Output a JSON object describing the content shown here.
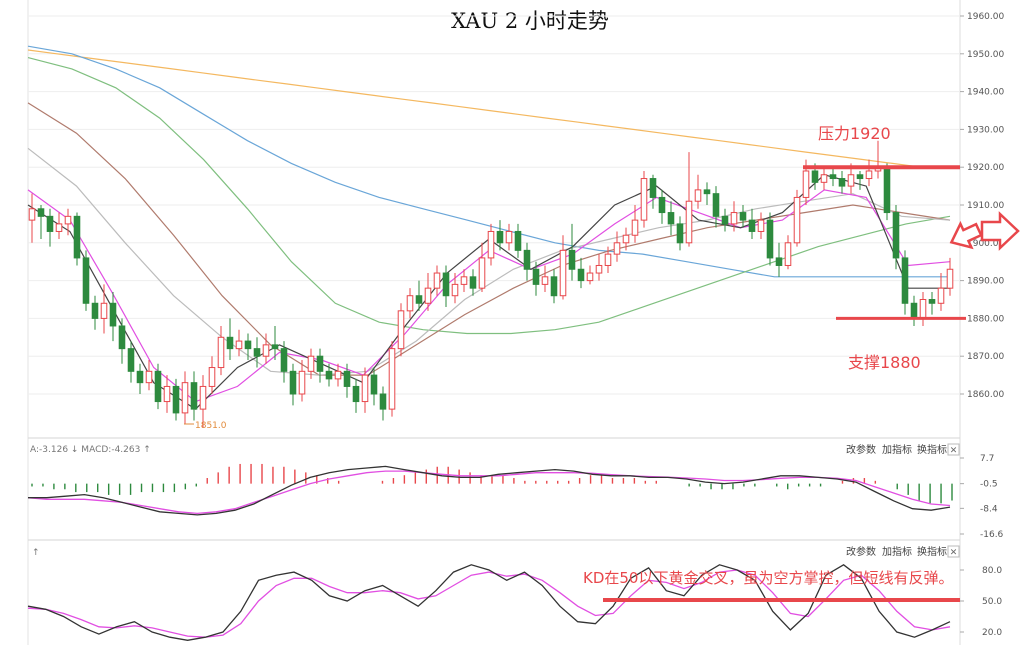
{
  "chart_data": {
    "type": "candlestick",
    "title": "XAU 2 小时走势",
    "price_axis": {
      "ticks": [
        1960,
        1950,
        1940,
        1930,
        1920,
        1910,
        1900,
        1890,
        1880,
        1870,
        1860
      ],
      "tick_labels": [
        "1960.00",
        "1950.00",
        "1940.00",
        "1930.00",
        "1920.00",
        "1910.00",
        "1900.00",
        "1890.00",
        "1880.00",
        "1870.00",
        "1860.00"
      ]
    },
    "candles": [
      [
        1906,
        1909,
        1913,
        1900
      ],
      [
        1909,
        1907,
        1910,
        1901
      ],
      [
        1907,
        1903,
        1909,
        1899
      ],
      [
        1903,
        1905,
        1908,
        1901
      ],
      [
        1905,
        1907,
        1909,
        1902
      ],
      [
        1907,
        1896,
        1908,
        1894
      ],
      [
        1896,
        1884,
        1898,
        1882
      ],
      [
        1884,
        1880,
        1886,
        1877
      ],
      [
        1880,
        1884,
        1889,
        1876
      ],
      [
        1884,
        1878,
        1887,
        1874
      ],
      [
        1878,
        1872,
        1880,
        1868
      ],
      [
        1872,
        1866,
        1874,
        1863
      ],
      [
        1866,
        1863,
        1868,
        1860
      ],
      [
        1863,
        1866,
        1869,
        1861
      ],
      [
        1866,
        1858,
        1868,
        1856
      ],
      [
        1858,
        1862,
        1865,
        1855
      ],
      [
        1862,
        1855,
        1864,
        1853
      ],
      [
        1855,
        1863,
        1866,
        1852
      ],
      [
        1863,
        1856,
        1866,
        1853
      ],
      [
        1856,
        1862,
        1865,
        1851
      ],
      [
        1862,
        1867,
        1870,
        1860
      ],
      [
        1867,
        1875,
        1878,
        1865
      ],
      [
        1875,
        1872,
        1880,
        1869
      ],
      [
        1872,
        1874,
        1877,
        1870
      ],
      [
        1874,
        1872,
        1876,
        1869
      ],
      [
        1872,
        1870,
        1875,
        1867
      ],
      [
        1870,
        1873,
        1876,
        1868
      ],
      [
        1873,
        1872,
        1878,
        1869
      ],
      [
        1872,
        1866,
        1874,
        1863
      ],
      [
        1866,
        1860,
        1868,
        1857
      ],
      [
        1860,
        1866,
        1869,
        1858
      ],
      [
        1866,
        1870,
        1872,
        1864
      ],
      [
        1870,
        1866,
        1872,
        1863
      ],
      [
        1866,
        1864,
        1868,
        1862
      ],
      [
        1864,
        1866,
        1868,
        1862
      ],
      [
        1866,
        1862,
        1868,
        1859
      ],
      [
        1862,
        1858,
        1864,
        1855
      ],
      [
        1858,
        1865,
        1867,
        1855
      ],
      [
        1865,
        1860,
        1867,
        1857
      ],
      [
        1860,
        1856,
        1862,
        1853
      ],
      [
        1856,
        1872,
        1874,
        1854
      ],
      [
        1872,
        1882,
        1884,
        1870
      ],
      [
        1882,
        1886,
        1888,
        1880
      ],
      [
        1886,
        1884,
        1890,
        1882
      ],
      [
        1884,
        1888,
        1892,
        1882
      ],
      [
        1888,
        1892,
        1894,
        1886
      ],
      [
        1892,
        1886,
        1894,
        1883
      ],
      [
        1886,
        1889,
        1892,
        1884
      ],
      [
        1889,
        1891,
        1893,
        1887
      ],
      [
        1891,
        1888,
        1893,
        1886
      ],
      [
        1888,
        1896,
        1900,
        1887
      ],
      [
        1896,
        1903,
        1905,
        1894
      ],
      [
        1903,
        1900,
        1906,
        1898
      ],
      [
        1900,
        1903,
        1905,
        1898
      ],
      [
        1903,
        1898,
        1905,
        1896
      ],
      [
        1898,
        1893,
        1900,
        1890
      ],
      [
        1893,
        1889,
        1895,
        1886
      ],
      [
        1889,
        1891,
        1894,
        1887
      ],
      [
        1891,
        1886,
        1893,
        1884
      ],
      [
        1886,
        1898,
        1902,
        1885
      ],
      [
        1898,
        1893,
        1905,
        1890
      ],
      [
        1893,
        1890,
        1896,
        1888
      ],
      [
        1890,
        1892,
        1894,
        1889
      ],
      [
        1892,
        1894,
        1897,
        1890
      ],
      [
        1894,
        1897,
        1899,
        1892
      ],
      [
        1897,
        1900,
        1903,
        1895
      ],
      [
        1900,
        1902,
        1904,
        1898
      ],
      [
        1902,
        1906,
        1910,
        1900
      ],
      [
        1906,
        1917,
        1919,
        1904
      ],
      [
        1917,
        1912,
        1918,
        1909
      ],
      [
        1912,
        1908,
        1914,
        1905
      ],
      [
        1908,
        1905,
        1911,
        1902
      ],
      [
        1905,
        1900,
        1907,
        1898
      ],
      [
        1900,
        1911,
        1924,
        1899
      ],
      [
        1911,
        1914,
        1918,
        1909
      ],
      [
        1914,
        1913,
        1916,
        1910
      ],
      [
        1913,
        1907,
        1915,
        1904
      ],
      [
        1907,
        1905,
        1909,
        1903
      ],
      [
        1905,
        1908,
        1911,
        1903
      ],
      [
        1908,
        1906,
        1910,
        1904
      ],
      [
        1906,
        1903,
        1909,
        1901
      ],
      [
        1903,
        1906,
        1908,
        1901
      ],
      [
        1906,
        1896,
        1908,
        1894
      ],
      [
        1896,
        1894,
        1900,
        1891
      ],
      [
        1894,
        1900,
        1902,
        1893
      ],
      [
        1900,
        1912,
        1914,
        1899
      ],
      [
        1912,
        1919,
        1922,
        1910
      ],
      [
        1919,
        1916,
        1921,
        1914
      ],
      [
        1916,
        1918,
        1920,
        1914
      ],
      [
        1918,
        1917,
        1920,
        1915
      ],
      [
        1917,
        1915,
        1919,
        1913
      ],
      [
        1915,
        1918,
        1921,
        1913
      ],
      [
        1918,
        1917,
        1919,
        1914
      ],
      [
        1917,
        1919,
        1922,
        1915
      ],
      [
        1919,
        1920,
        1927,
        1917
      ],
      [
        1920,
        1908,
        1921,
        1906
      ],
      [
        1908,
        1896,
        1910,
        1893
      ],
      [
        1896,
        1884,
        1898,
        1881
      ],
      [
        1884,
        1880,
        1886,
        1878
      ],
      [
        1880,
        1885,
        1887,
        1878
      ],
      [
        1885,
        1884,
        1887,
        1881
      ],
      [
        1884,
        1888,
        1892,
        1882
      ],
      [
        1888,
        1893,
        1896,
        1886
      ]
    ],
    "moving_averages": [
      {
        "color": "#f4b860",
        "values": [
          1951,
          1950,
          1949,
          1948,
          1947,
          1946,
          1945,
          1944,
          1943,
          1942,
          1941,
          1940,
          1939,
          1938,
          1937,
          1936,
          1935,
          1934,
          1933,
          1932,
          1931,
          1930,
          1929,
          1928,
          1927,
          1926,
          1925,
          1924,
          1923,
          1922,
          1921,
          1920,
          1920
        ]
      },
      {
        "color": "#6aa6d8",
        "values": [
          1952,
          1950,
          1946,
          1941,
          1934,
          1927,
          1921,
          1916,
          1912,
          1909,
          1906,
          1903,
          1900,
          1898,
          1897,
          1895,
          1893,
          1891,
          1891,
          1891,
          1891,
          1891
        ]
      },
      {
        "color": "#7fbf7f",
        "values": [
          1949,
          1946,
          1941,
          1933,
          1922,
          1909,
          1895,
          1884,
          1879,
          1877,
          1876,
          1876,
          1877,
          1879,
          1883,
          1887,
          1891,
          1895,
          1899,
          1902,
          1905,
          1907
        ]
      },
      {
        "color": "#b07b6d",
        "values": [
          1937,
          1929,
          1917,
          1902,
          1886,
          1873,
          1865,
          1865,
          1873,
          1881,
          1888,
          1894,
          1898,
          1901,
          1904,
          1906,
          1908,
          1910,
          1908,
          1906
        ]
      },
      {
        "color": "#bcbcbc",
        "values": [
          1925,
          1915,
          1900,
          1886,
          1875,
          1866,
          1865,
          1866,
          1874,
          1885,
          1893,
          1898,
          1901,
          1904,
          1906,
          1909,
          1911,
          1913,
          1907,
          1906
        ]
      },
      {
        "color": "#e14fe2",
        "values": [
          1914,
          1906,
          1887,
          1867,
          1858,
          1862,
          1871,
          1869,
          1865,
          1876,
          1889,
          1898,
          1893,
          1897,
          1905,
          1912,
          1908,
          1904,
          1906,
          1914,
          1912,
          1894,
          1895
        ]
      },
      {
        "color": "#444444",
        "values": [
          1910,
          1903,
          1883,
          1863,
          1856,
          1867,
          1873,
          1868,
          1863,
          1878,
          1892,
          1901,
          1893,
          1899,
          1910,
          1915,
          1906,
          1904,
          1908,
          1918,
          1915,
          1888,
          1888
        ]
      }
    ],
    "price_levels": [
      {
        "value": 1920,
        "label": "压力1920"
      },
      {
        "value": 1880,
        "label": "支撑1880"
      }
    ],
    "low_marker": "1851.0",
    "macd": {
      "header": "A:-3.126 ↓ MACD:-4.263 ↑",
      "ticks": [
        7.7,
        -0.5,
        -8.4,
        -16.6
      ],
      "tick_labels": [
        "7.7",
        "-0.5",
        "-8.4",
        "-16.6"
      ],
      "histogram": [
        -1,
        -1,
        -2,
        -2,
        -3,
        -3,
        -3,
        -4,
        -4,
        -4,
        -3,
        -3,
        -3,
        -3,
        -2,
        -1,
        2,
        4,
        6,
        7,
        7,
        7,
        6,
        6,
        5,
        4,
        3,
        2,
        1,
        0,
        0,
        0,
        1,
        2,
        3,
        4,
        5,
        6,
        6,
        5,
        4,
        3,
        3,
        3,
        2,
        1,
        1,
        1,
        1,
        1,
        2,
        3,
        3,
        2,
        2,
        2,
        1,
        1,
        0,
        0,
        -1,
        -1,
        -2,
        -2,
        -2,
        -1,
        -1,
        0,
        -1,
        -2,
        -1,
        -1,
        -1,
        0,
        1,
        2,
        2,
        1,
        0,
        -2,
        -4,
        -6,
        -7,
        -7,
        -6
      ],
      "dif": [
        -5,
        -5,
        -4.5,
        -4,
        -5,
        -6.5,
        -8,
        -9.5,
        -10,
        -10.5,
        -10,
        -9,
        -7,
        -4,
        -1,
        1.5,
        3,
        4,
        4.5,
        5,
        4,
        3,
        2,
        1.5,
        1.5,
        2.5,
        3,
        3.5,
        4,
        3.5,
        2.5,
        2,
        2,
        1.5,
        1.5,
        1,
        0,
        -0.5,
        0,
        1,
        2,
        2,
        1.5,
        1,
        0,
        -3,
        -6,
        -8.5,
        -9,
        -8
      ],
      "dea": [
        -5,
        -5.5,
        -5.5,
        -5.5,
        -6,
        -6.5,
        -7.5,
        -8.5,
        -9.5,
        -10,
        -9.5,
        -8.5,
        -6.5,
        -4.5,
        -2.5,
        -0.5,
        1,
        2,
        3,
        3.5,
        3.5,
        3,
        2.5,
        2,
        2,
        2,
        2.5,
        3,
        3,
        3,
        2.8,
        2.4,
        2,
        1.8,
        1.6,
        1.3,
        1,
        0.5,
        0.5,
        0.8,
        1.2,
        1.5,
        1.5,
        1.2,
        0.5,
        -1.5,
        -3.5,
        -5.5,
        -7,
        -7.5
      ]
    },
    "kd": {
      "header": "↑",
      "ticks": [
        80,
        50,
        20
      ],
      "tick_labels": [
        "80.0",
        "50.0",
        "20.0"
      ],
      "k": [
        45,
        42,
        35,
        25,
        18,
        25,
        30,
        20,
        15,
        12,
        15,
        20,
        40,
        70,
        75,
        78,
        70,
        55,
        50,
        60,
        65,
        55,
        45,
        60,
        78,
        85,
        80,
        70,
        78,
        65,
        45,
        30,
        28,
        45,
        72,
        82,
        60,
        55,
        75,
        85,
        80,
        70,
        40,
        22,
        38,
        75,
        85,
        72,
        40,
        20,
        15,
        22,
        30
      ],
      "d": [
        43,
        42,
        38,
        32,
        25,
        24,
        26,
        24,
        20,
        16,
        15,
        17,
        28,
        50,
        65,
        72,
        72,
        64,
        58,
        58,
        60,
        58,
        52,
        55,
        65,
        75,
        78,
        74,
        76,
        70,
        58,
        45,
        36,
        38,
        55,
        70,
        68,
        62,
        68,
        78,
        80,
        75,
        58,
        38,
        35,
        52,
        70,
        75,
        60,
        40,
        25,
        22,
        25
      ],
      "annotation": "KD在50以下黄金交叉，虽为空方掌控，但短线有反弹。",
      "level": 50
    },
    "toolbar": {
      "b1": "改参数",
      "b2": "加指标",
      "b3": "换指标",
      "close": "✕"
    }
  }
}
